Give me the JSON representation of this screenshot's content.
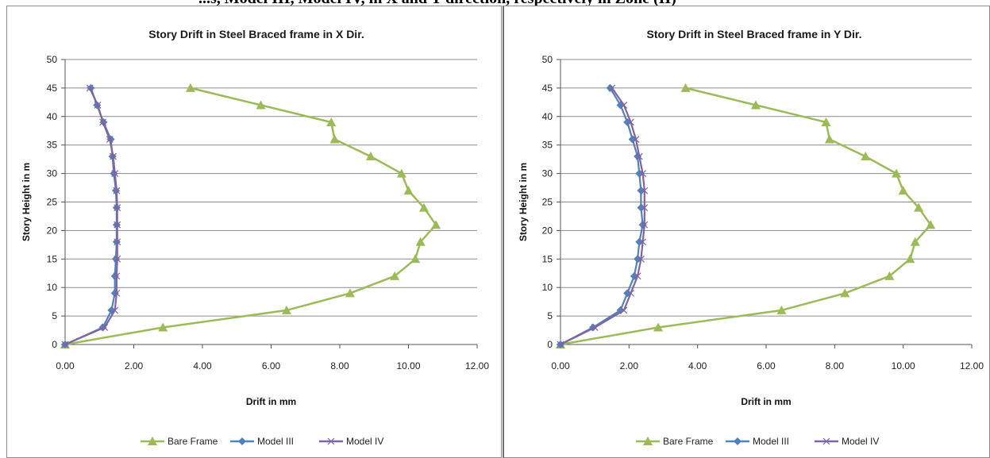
{
  "caption_fragment": "...s, Model III, Model IV, in X and Y direction, respectively in Zone (II)",
  "colors": {
    "bare_frame": "#9bbb59",
    "model_iii": "#4f81bd",
    "model_iv": "#8064a2",
    "grid": "#8c8c8c"
  },
  "chart_data": [
    {
      "type": "line",
      "title": "Story Drift in Steel Braced frame in X Dir.",
      "xlabel": "Drift in mm",
      "ylabel": "Story Height in m",
      "xlim": [
        0,
        12
      ],
      "ylim": [
        0,
        50
      ],
      "xticks": [
        "0.00",
        "2.00",
        "4.00",
        "6.00",
        "8.00",
        "10.00",
        "12.00"
      ],
      "yticks": [
        "0",
        "5",
        "10",
        "15",
        "20",
        "25",
        "30",
        "35",
        "40",
        "45",
        "50"
      ],
      "grid": "horizontal",
      "legend": "bottom",
      "series": [
        {
          "name": "Bare Frame",
          "marker": "triangle",
          "points": [
            [
              0,
              0
            ],
            [
              2.85,
              3
            ],
            [
              6.45,
              6
            ],
            [
              8.3,
              9
            ],
            [
              9.6,
              12
            ],
            [
              10.2,
              15
            ],
            [
              10.35,
              18
            ],
            [
              10.8,
              21
            ],
            [
              10.45,
              24
            ],
            [
              10.0,
              27
            ],
            [
              9.8,
              30
            ],
            [
              8.9,
              33
            ],
            [
              7.85,
              36
            ],
            [
              7.75,
              39
            ],
            [
              5.7,
              42
            ],
            [
              3.65,
              45
            ]
          ]
        },
        {
          "name": "Model III",
          "marker": "diamond",
          "points": [
            [
              0,
              0
            ],
            [
              1.1,
              3
            ],
            [
              1.35,
              6
            ],
            [
              1.45,
              9
            ],
            [
              1.45,
              12
            ],
            [
              1.48,
              15
            ],
            [
              1.5,
              18
            ],
            [
              1.5,
              21
            ],
            [
              1.5,
              24
            ],
            [
              1.48,
              27
            ],
            [
              1.42,
              30
            ],
            [
              1.38,
              33
            ],
            [
              1.33,
              36
            ],
            [
              1.12,
              39
            ],
            [
              0.93,
              42
            ],
            [
              0.75,
              45
            ]
          ]
        },
        {
          "name": "Model IV",
          "marker": "cross",
          "points": [
            [
              0,
              0
            ],
            [
              1.15,
              3
            ],
            [
              1.45,
              6
            ],
            [
              1.5,
              9
            ],
            [
              1.5,
              12
            ],
            [
              1.52,
              15
            ],
            [
              1.52,
              18
            ],
            [
              1.52,
              21
            ],
            [
              1.52,
              24
            ],
            [
              1.5,
              27
            ],
            [
              1.45,
              30
            ],
            [
              1.4,
              33
            ],
            [
              1.3,
              36
            ],
            [
              1.1,
              39
            ],
            [
              0.95,
              42
            ],
            [
              0.72,
              45
            ]
          ]
        }
      ]
    },
    {
      "type": "line",
      "title": "Story Drift in Steel Braced frame in  Y Dir.",
      "xlabel": "Drift in mm",
      "ylabel": "Story Height in m",
      "xlim": [
        0,
        12
      ],
      "ylim": [
        0,
        50
      ],
      "xticks": [
        "0.00",
        "2.00",
        "4.00",
        "6.00",
        "8.00",
        "10.00",
        "12.00"
      ],
      "yticks": [
        "0",
        "5",
        "10",
        "15",
        "20",
        "25",
        "30",
        "35",
        "40",
        "45",
        "50"
      ],
      "grid": "horizontal",
      "legend": "bottom",
      "series": [
        {
          "name": "Bare Frame",
          "marker": "triangle",
          "points": [
            [
              0,
              0
            ],
            [
              2.85,
              3
            ],
            [
              6.45,
              6
            ],
            [
              8.3,
              9
            ],
            [
              9.6,
              12
            ],
            [
              10.2,
              15
            ],
            [
              10.35,
              18
            ],
            [
              10.8,
              21
            ],
            [
              10.45,
              24
            ],
            [
              10.0,
              27
            ],
            [
              9.8,
              30
            ],
            [
              8.9,
              33
            ],
            [
              7.85,
              36
            ],
            [
              7.75,
              39
            ],
            [
              5.7,
              42
            ],
            [
              3.65,
              45
            ]
          ]
        },
        {
          "name": "Model III",
          "marker": "diamond",
          "points": [
            [
              0,
              0
            ],
            [
              0.95,
              3
            ],
            [
              1.75,
              6
            ],
            [
              1.95,
              9
            ],
            [
              2.15,
              12
            ],
            [
              2.25,
              15
            ],
            [
              2.3,
              18
            ],
            [
              2.4,
              21
            ],
            [
              2.35,
              24
            ],
            [
              2.35,
              27
            ],
            [
              2.3,
              30
            ],
            [
              2.25,
              33
            ],
            [
              2.1,
              36
            ],
            [
              1.95,
              39
            ],
            [
              1.75,
              42
            ],
            [
              1.45,
              45
            ]
          ]
        },
        {
          "name": "Model IV",
          "marker": "cross",
          "points": [
            [
              0,
              0
            ],
            [
              1.0,
              3
            ],
            [
              1.85,
              6
            ],
            [
              2.05,
              9
            ],
            [
              2.25,
              12
            ],
            [
              2.35,
              15
            ],
            [
              2.4,
              18
            ],
            [
              2.45,
              21
            ],
            [
              2.45,
              24
            ],
            [
              2.45,
              27
            ],
            [
              2.4,
              30
            ],
            [
              2.3,
              33
            ],
            [
              2.2,
              36
            ],
            [
              2.05,
              39
            ],
            [
              1.85,
              42
            ],
            [
              1.5,
              45
            ]
          ]
        }
      ]
    }
  ]
}
